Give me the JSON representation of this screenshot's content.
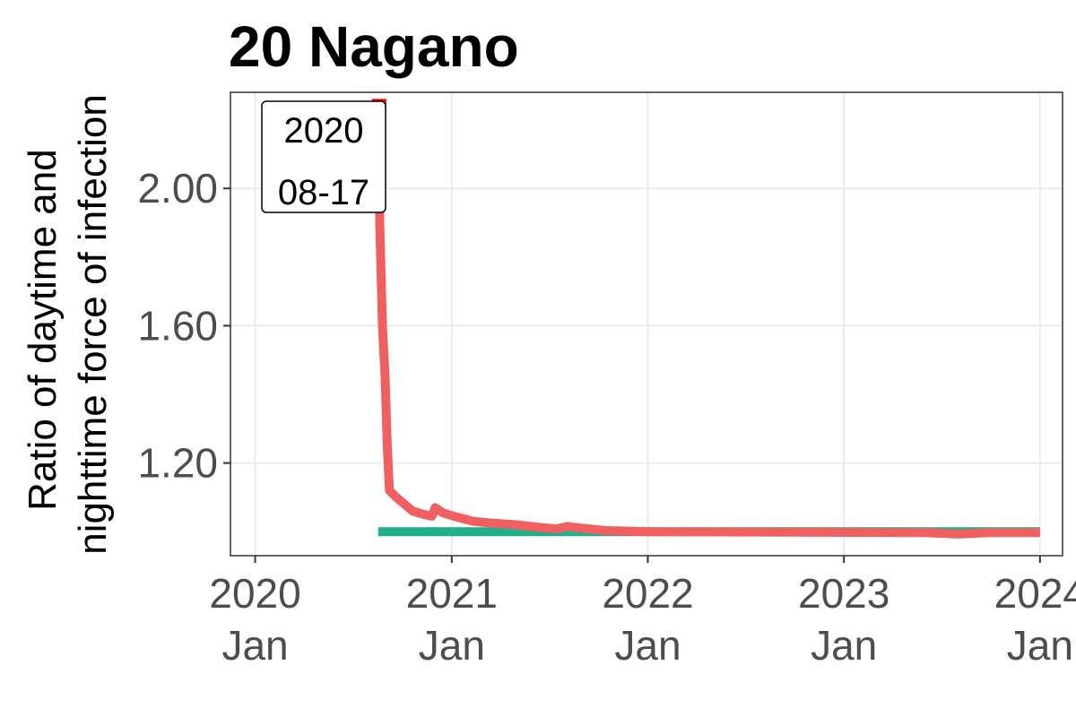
{
  "chart_data": {
    "type": "line",
    "title": "20 Nagano",
    "ylabel_lines": [
      "Ratio of daytime and",
      "nighttime force of infection"
    ],
    "xlabel": "",
    "x_range": [
      "2019-11-16",
      "2024-02-12"
    ],
    "ylim": [
      0.93,
      2.28
    ],
    "y_ticks": [
      {
        "value": 1.2,
        "label": "1.20"
      },
      {
        "value": 1.6,
        "label": "1.60"
      },
      {
        "value": 2.0,
        "label": "2.00"
      }
    ],
    "x_ticks": [
      {
        "date": "2020-01-01",
        "line1": "2020",
        "line2": "Jan"
      },
      {
        "date": "2021-01-01",
        "line1": "2021",
        "line2": "Jan"
      },
      {
        "date": "2022-01-01",
        "line1": "2022",
        "line2": "Jan"
      },
      {
        "date": "2023-01-01",
        "line1": "2023",
        "line2": "Jan"
      },
      {
        "date": "2024-01-01",
        "line1": "2024",
        "line2": "Jan"
      }
    ],
    "grid": true,
    "legend": "none",
    "series": [
      {
        "color": "#21b08b",
        "points": [
          [
            "2020-08-17",
            1.0
          ],
          [
            "2024-01-01",
            1.0
          ]
        ]
      },
      {
        "color": "#f06060",
        "points": [
          [
            "2020-08-17",
            2.24
          ],
          [
            "2020-08-20",
            1.9
          ],
          [
            "2020-08-25",
            1.6
          ],
          [
            "2020-08-30",
            1.45
          ],
          [
            "2020-09-03",
            1.25
          ],
          [
            "2020-09-07",
            1.12
          ],
          [
            "2020-09-20",
            1.1
          ],
          [
            "2020-10-05",
            1.08
          ],
          [
            "2020-10-20",
            1.06
          ],
          [
            "2020-11-10",
            1.05
          ],
          [
            "2020-11-25",
            1.045
          ],
          [
            "2020-12-01",
            1.07
          ],
          [
            "2020-12-15",
            1.055
          ],
          [
            "2021-01-05",
            1.045
          ],
          [
            "2021-02-10",
            1.03
          ],
          [
            "2021-03-15",
            1.025
          ],
          [
            "2021-05-01",
            1.02
          ],
          [
            "2021-06-15",
            1.012
          ],
          [
            "2021-07-15",
            1.008
          ],
          [
            "2021-08-05",
            1.015
          ],
          [
            "2021-09-01",
            1.01
          ],
          [
            "2021-10-15",
            1.003
          ],
          [
            "2022-01-01",
            1.0
          ],
          [
            "2023-01-01",
            0.998
          ],
          [
            "2023-06-01",
            0.997
          ],
          [
            "2023-08-01",
            0.993
          ],
          [
            "2023-10-01",
            0.997
          ],
          [
            "2024-01-01",
            0.997
          ]
        ]
      }
    ],
    "annotation": {
      "date": "2020-08-17",
      "value": 2.24,
      "line1": "2020",
      "line2": "08-17",
      "label_color": "#000000",
      "marker_color": "#ff0000"
    }
  }
}
